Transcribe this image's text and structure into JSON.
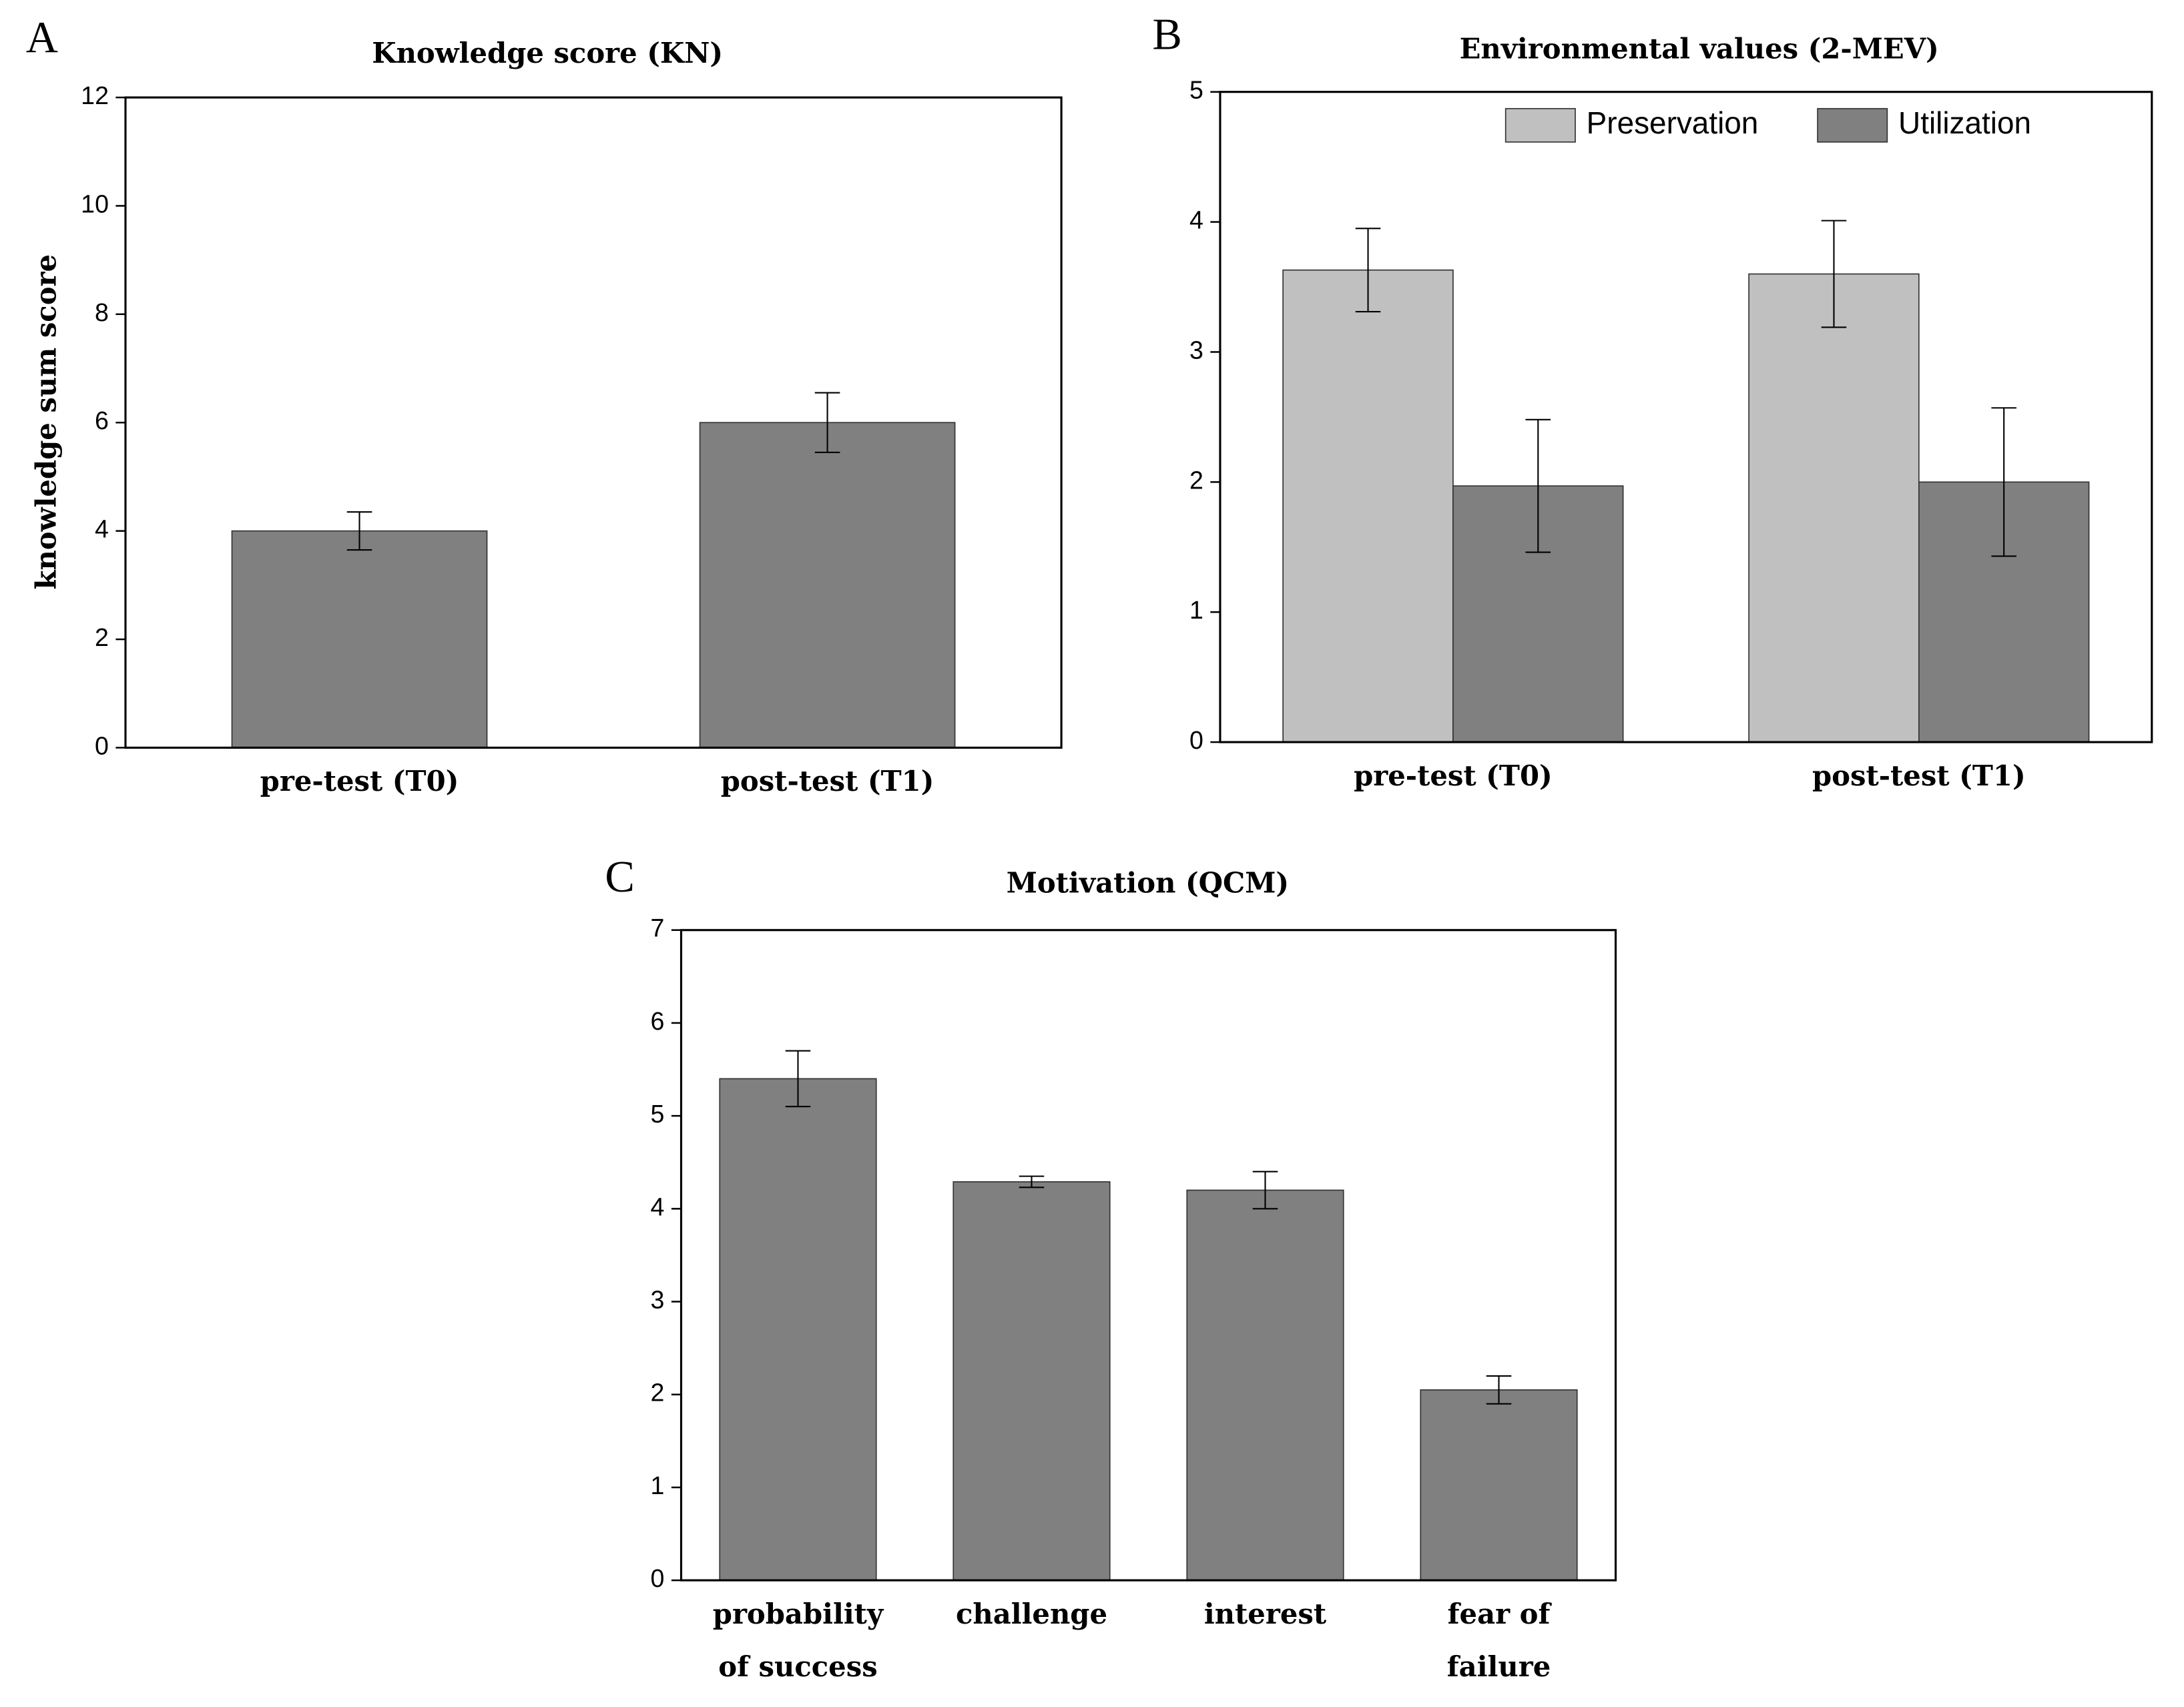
{
  "chart_data": [
    {
      "type": "bar",
      "panel_label": "A",
      "title": "Knowledge score (KN)",
      "y_label": "knowledge sum score",
      "categories": [
        [
          "pre-test (T0)"
        ],
        [
          "post-test (T1)"
        ]
      ],
      "values": [
        4,
        6
      ],
      "errors": [
        0.35,
        0.55
      ],
      "color": "#808080",
      "ylim": [
        0,
        12
      ],
      "yticks": [
        0,
        2,
        4,
        6,
        8,
        10,
        12
      ]
    },
    {
      "type": "grouped_bar",
      "panel_label": "B",
      "title": "Environmental values (2-MEV)",
      "categories": [
        [
          "pre-test (T0)"
        ],
        [
          "post-test (T1)"
        ]
      ],
      "series": [
        {
          "name": "Preservation",
          "color": "#c0c0c0",
          "values": [
            3.63,
            3.6
          ],
          "errors": [
            0.32,
            0.41
          ]
        },
        {
          "name": "Utilization",
          "color": "#808080",
          "values": [
            1.97,
            2.0
          ],
          "errors": [
            0.51,
            0.57
          ]
        }
      ],
      "legend": "top",
      "ylim": [
        0,
        5
      ],
      "yticks": [
        0,
        1,
        2,
        3,
        4,
        5
      ]
    },
    {
      "type": "bar",
      "panel_label": "C",
      "title": "Motivation (QCM)",
      "categories": [
        [
          "probability",
          "of success"
        ],
        [
          "challenge"
        ],
        [
          "interest"
        ],
        [
          "fear of",
          "failure"
        ]
      ],
      "values": [
        5.4,
        4.29,
        4.2,
        2.05
      ],
      "errors": [
        0.3,
        0.06,
        0.2,
        0.15
      ],
      "color": "#808080",
      "ylim": [
        0,
        7
      ],
      "yticks": [
        0,
        1,
        2,
        3,
        4,
        5,
        6,
        7
      ]
    }
  ]
}
